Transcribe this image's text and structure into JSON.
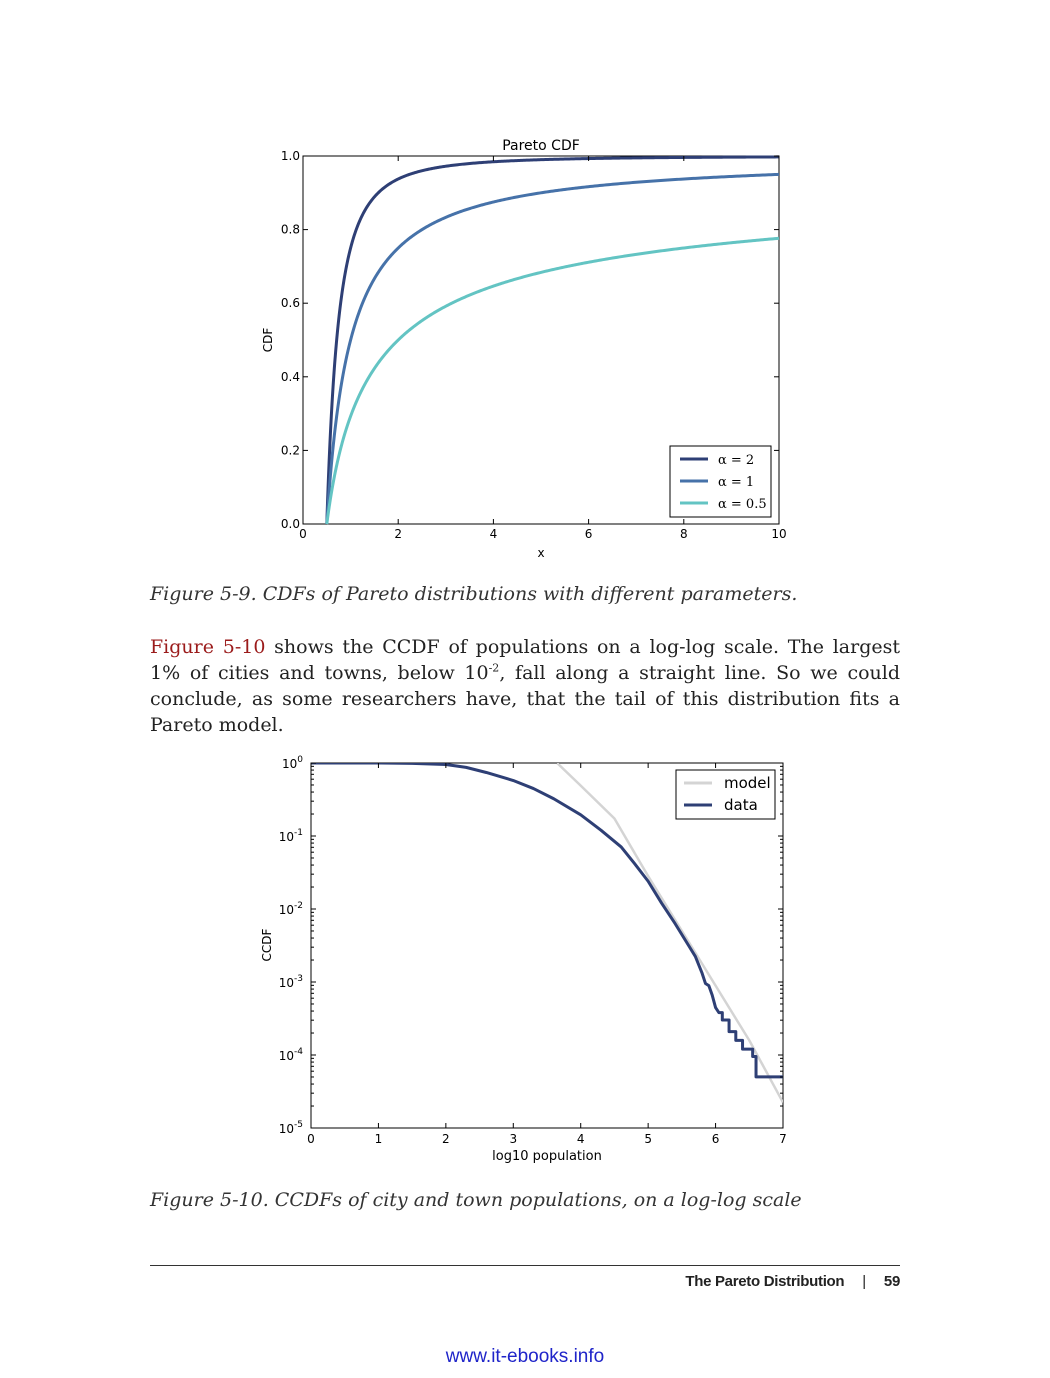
{
  "figure1": {
    "caption": "Figure 5-9. CDFs of Pareto distributions with different parameters.",
    "chart_data": {
      "type": "line",
      "title": "Pareto CDF",
      "xlabel": "x",
      "ylabel": "CDF",
      "xlim": [
        0,
        10
      ],
      "ylim": [
        0,
        1
      ],
      "xticks": [
        "0",
        "2",
        "4",
        "6",
        "8",
        "10"
      ],
      "yticks": [
        "0.0",
        "0.2",
        "0.4",
        "0.6",
        "0.8",
        "1.0"
      ],
      "xmin": 0.5,
      "series": [
        {
          "name": "α = 2",
          "alpha": 2,
          "color": "#2e3f75"
        },
        {
          "name": "α = 1",
          "alpha": 1,
          "color": "#4672a9"
        },
        {
          "name": "α = 0.5",
          "alpha": 0.5,
          "color": "#63c4c3"
        }
      ],
      "legend": "bottom-right"
    }
  },
  "paragraph": {
    "xref": "Figure 5-10",
    "text_a": " shows the CCDF of populations on a log-log scale. The largest 1% of cities and towns, below 10",
    "sup": "-2",
    "text_b": ", fall along a straight line. So we could conclude, as some re­searchers have, that the tail of this distribution fits a Pareto model."
  },
  "figure2": {
    "caption": "Figure 5-10. CCDFs of city and town populations, on a log-log scale",
    "chart_data": {
      "type": "line",
      "title": "",
      "xlabel": "log10 population",
      "ylabel": "CCDF",
      "xlim": [
        0,
        7
      ],
      "ylim_log10": [
        -5,
        0
      ],
      "xticks": [
        "0",
        "1",
        "2",
        "3",
        "4",
        "5",
        "6",
        "7"
      ],
      "yticks_exp": [
        "0",
        "-1",
        "-2",
        "-3",
        "-4",
        "-5"
      ],
      "series": [
        {
          "name": "model",
          "color": "#d4d4d4",
          "x": [
            3.65,
            4.0,
            4.5,
            5.0,
            5.5,
            6.0,
            6.5,
            7.0
          ],
          "log10_y": [
            0.0,
            -0.31,
            -0.76,
            -1.55,
            -2.3,
            -3.05,
            -3.8,
            -4.65
          ]
        },
        {
          "name": "data",
          "color": "#2e3f75",
          "x": [
            0,
            1.0,
            1.5,
            2.0,
            2.3,
            2.6,
            3.0,
            3.3,
            3.6,
            4.0,
            4.3,
            4.6,
            4.8,
            5.0,
            5.2,
            5.4,
            5.6,
            5.7,
            5.8,
            5.85,
            5.9,
            5.95,
            6.0,
            6.05,
            6.1,
            6.1,
            6.2,
            6.2,
            6.3,
            6.3,
            6.4,
            6.4,
            6.55,
            6.55,
            6.6,
            6.6,
            7.0
          ],
          "log10_y": [
            0,
            0,
            -0.005,
            -0.02,
            -0.06,
            -0.13,
            -0.24,
            -0.35,
            -0.49,
            -0.71,
            -0.92,
            -1.15,
            -1.38,
            -1.62,
            -1.92,
            -2.2,
            -2.5,
            -2.65,
            -2.88,
            -3.02,
            -3.05,
            -3.18,
            -3.35,
            -3.42,
            -3.42,
            -3.52,
            -3.52,
            -3.68,
            -3.68,
            -3.8,
            -3.8,
            -3.92,
            -3.92,
            -4.02,
            -4.02,
            -4.3,
            -4.3
          ]
        }
      ],
      "legend": "top-right"
    }
  },
  "footer": {
    "section": "The Pareto Distribution",
    "separator": "|",
    "page": "59"
  },
  "site": "www.it-ebooks.info"
}
